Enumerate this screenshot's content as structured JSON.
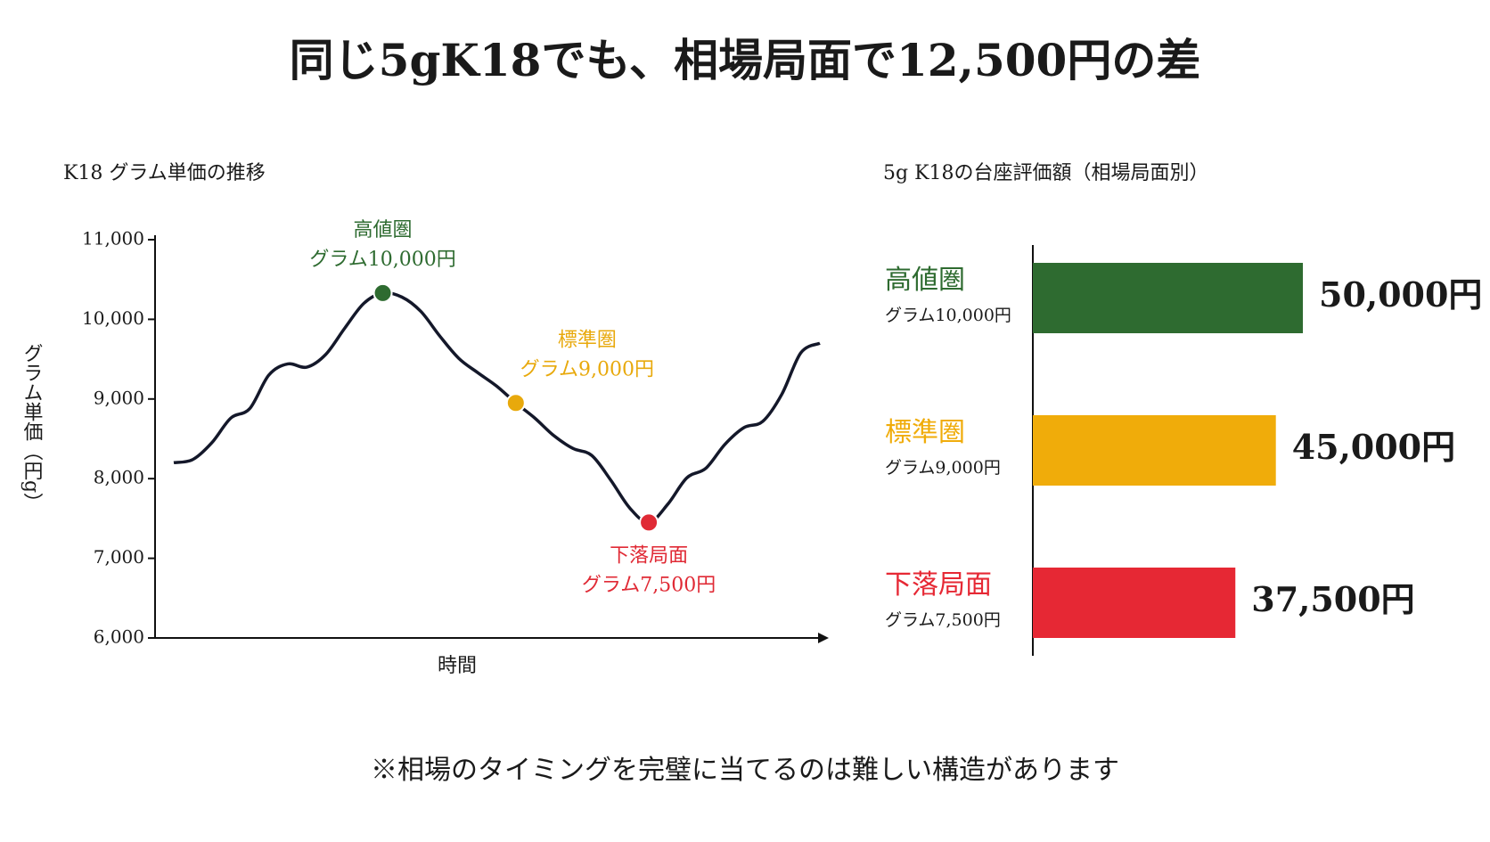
{
  "title": "同じ5gK18でも、相場局面で12,500円の差",
  "footnote": "※相場のタイミングを完璧に当てるのは難しい構造があります",
  "chart_data": [
    {
      "type": "line",
      "title": "K18 グラム単価の推移",
      "x_label": "時間",
      "y_label": "グラム単価（円g）",
      "categories": [
        null,
        null,
        null,
        null,
        null,
        null,
        null,
        null,
        null,
        null,
        null,
        null,
        null,
        null,
        null,
        null,
        null,
        null,
        null,
        null,
        null,
        null,
        null,
        null,
        null,
        null,
        null,
        null,
        null,
        null,
        null,
        null,
        null,
        null,
        null
      ],
      "values": [
        8200,
        8240,
        8450,
        8760,
        8880,
        9300,
        9440,
        9400,
        9560,
        9890,
        10200,
        10330,
        10280,
        10100,
        9790,
        9510,
        9330,
        9160,
        8950,
        8760,
        8540,
        8380,
        8290,
        7980,
        7630,
        7450,
        7680,
        8010,
        8130,
        8430,
        8640,
        8720,
        9060,
        9580,
        9700
      ],
      "color": "#14182a",
      "ylim": [
        6000,
        11000
      ],
      "yticks": [
        {
          "value": 6000,
          "label": "6,000"
        },
        {
          "value": 7000,
          "label": "7,000"
        },
        {
          "value": 8000,
          "label": "8,000"
        },
        {
          "value": 9000,
          "label": "9,000"
        },
        {
          "value": 10000,
          "label": "10,000"
        },
        {
          "value": 11000,
          "label": "11,000"
        }
      ],
      "annotations": [
        {
          "at": 11,
          "label": "高値圏",
          "sublabel": "グラム10,000円",
          "color": "#2e6b30",
          "position": "above"
        },
        {
          "at": 18,
          "label": "標準圏",
          "sublabel": "グラム9,000円",
          "color": "#e8a90c",
          "position": "above-right"
        },
        {
          "at": 25,
          "label": "下落局面",
          "sublabel": "グラム7,500円",
          "color": "#e02a35",
          "position": "below"
        }
      ]
    },
    {
      "type": "hbar",
      "title": "5g K18の台座評価額（相場局面別）",
      "categories": [
        "高値圏",
        "標準圏",
        "下落局面"
      ],
      "sublabels": [
        "グラム10,000円",
        "グラム9,000円",
        "グラム7,500円"
      ],
      "values": [
        50000,
        45000,
        37500
      ],
      "value_labels": [
        "50,000円",
        "45,000円",
        "37,500円"
      ],
      "colors": [
        "#2e6b30",
        "#f0ac0a",
        "#e62834"
      ],
      "xlim": [
        0,
        50000
      ]
    }
  ]
}
